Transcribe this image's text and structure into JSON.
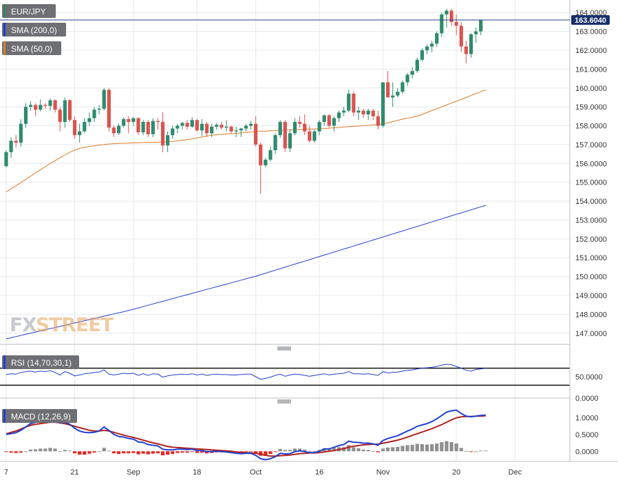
{
  "chart_data": {
    "type": "candlestick",
    "symbol": "EUR/JPY",
    "last_price": "163.6040",
    "indicators": {
      "sma200_label": "SMA (200,0)",
      "sma50_label": "SMA (50,0)",
      "rsi_label": "RSI (14,70,30,1)",
      "macd_label": "MACD (12,26,9)"
    },
    "price_axis": {
      "ticks": [
        "164.0000",
        "163.0000",
        "162.0000",
        "161.0000",
        "160.0000",
        "159.0000",
        "158.0000",
        "157.0000",
        "156.0000",
        "155.0000",
        "154.0000",
        "153.0000",
        "152.0000",
        "151.0000",
        "150.0000",
        "149.0000",
        "148.0000",
        "147.0000"
      ],
      "ylim": [
        146.7,
        164.3
      ]
    },
    "rsi_axis": {
      "ticks": [
        "50.0000",
        "0.0000"
      ],
      "ylim": [
        0,
        100
      ],
      "levels": [
        70,
        30
      ]
    },
    "macd_axis": {
      "ticks": [
        "1.0000",
        "0.5000",
        "0.0000"
      ],
      "ylim": [
        -0.3,
        1.25
      ]
    },
    "x_ticks": [
      "7",
      "21",
      "Sep",
      "18",
      "Oct",
      "16",
      "Nov",
      "20",
      "Dec"
    ],
    "x_tick_index": [
      0,
      14,
      26,
      39,
      51,
      64,
      77,
      92,
      104
    ],
    "candles_ohlc": [
      [
        155.85,
        156.7,
        155.8,
        156.6
      ],
      [
        156.6,
        157.4,
        156.3,
        157.2
      ],
      [
        157.2,
        157.5,
        156.85,
        157.1
      ],
      [
        157.1,
        158.35,
        156.9,
        158.1
      ],
      [
        158.1,
        159.2,
        157.9,
        159.0
      ],
      [
        159.0,
        159.3,
        158.8,
        159.1
      ],
      [
        159.1,
        159.2,
        158.5,
        158.85
      ],
      [
        158.85,
        159.4,
        158.75,
        159.1
      ],
      [
        159.1,
        159.2,
        158.9,
        159.05
      ],
      [
        159.05,
        159.45,
        158.8,
        159.35
      ],
      [
        159.35,
        159.4,
        158.7,
        158.85
      ],
      [
        158.85,
        159.0,
        157.7,
        158.2
      ],
      [
        158.2,
        159.5,
        157.9,
        159.35
      ],
      [
        159.35,
        159.4,
        158.2,
        158.3
      ],
      [
        158.3,
        158.5,
        157.3,
        157.5
      ],
      [
        157.5,
        158.1,
        157.1,
        157.7
      ],
      [
        157.7,
        158.4,
        157.6,
        158.2
      ],
      [
        158.2,
        158.7,
        158.0,
        158.4
      ],
      [
        158.4,
        159.0,
        158.2,
        158.85
      ],
      [
        158.85,
        159.1,
        158.6,
        158.9
      ],
      [
        158.9,
        160.0,
        158.8,
        159.9
      ],
      [
        159.9,
        160.0,
        157.7,
        157.9
      ],
      [
        157.9,
        158.0,
        157.4,
        157.6
      ],
      [
        157.6,
        158.1,
        157.5,
        158.0
      ],
      [
        158.0,
        158.45,
        157.9,
        158.35
      ],
      [
        158.35,
        158.5,
        157.6,
        158.2
      ],
      [
        158.2,
        158.45,
        158.0,
        158.4
      ],
      [
        158.4,
        158.45,
        157.5,
        157.65
      ],
      [
        157.65,
        158.3,
        157.5,
        158.2
      ],
      [
        158.2,
        158.3,
        157.4,
        157.55
      ],
      [
        157.55,
        158.4,
        157.4,
        158.25
      ],
      [
        158.25,
        158.4,
        157.8,
        158.2
      ],
      [
        158.2,
        158.7,
        156.6,
        156.95
      ],
      [
        156.95,
        157.7,
        156.6,
        157.5
      ],
      [
        157.5,
        158.0,
        157.3,
        157.85
      ],
      [
        157.85,
        158.1,
        157.6,
        158.0
      ],
      [
        158.0,
        158.2,
        157.8,
        158.15
      ],
      [
        158.15,
        158.3,
        157.8,
        157.95
      ],
      [
        157.95,
        158.45,
        157.9,
        158.3
      ],
      [
        158.3,
        158.35,
        157.7,
        157.75
      ],
      [
        157.75,
        158.35,
        157.45,
        158.1
      ],
      [
        158.1,
        158.2,
        157.4,
        157.6
      ],
      [
        157.6,
        158.1,
        157.4,
        157.95
      ],
      [
        157.95,
        158.15,
        157.8,
        158.05
      ],
      [
        158.05,
        158.2,
        157.8,
        157.9
      ],
      [
        157.9,
        158.3,
        157.7,
        157.95
      ],
      [
        157.95,
        158.0,
        157.6,
        157.7
      ],
      [
        157.7,
        157.95,
        157.4,
        157.75
      ],
      [
        157.75,
        157.9,
        157.4,
        157.85
      ],
      [
        157.85,
        158.1,
        157.7,
        158.0
      ],
      [
        158.0,
        158.25,
        157.8,
        158.1
      ],
      [
        158.1,
        158.5,
        156.9,
        157.0
      ],
      [
        157.0,
        157.1,
        154.4,
        155.9
      ],
      [
        155.9,
        156.3,
        155.8,
        156.2
      ],
      [
        156.2,
        156.9,
        156.1,
        156.7
      ],
      [
        156.7,
        157.6,
        156.5,
        157.5
      ],
      [
        157.5,
        158.3,
        157.35,
        158.2
      ],
      [
        158.2,
        158.3,
        156.6,
        156.8
      ],
      [
        156.8,
        157.8,
        156.6,
        157.6
      ],
      [
        157.6,
        158.4,
        157.5,
        158.2
      ],
      [
        158.2,
        158.5,
        157.9,
        158.1
      ],
      [
        158.1,
        158.6,
        157.5,
        157.7
      ],
      [
        157.7,
        158.0,
        157.1,
        157.2
      ],
      [
        157.2,
        157.8,
        157.1,
        157.7
      ],
      [
        157.7,
        158.3,
        157.5,
        158.2
      ],
      [
        158.2,
        158.6,
        158.0,
        158.55
      ],
      [
        158.55,
        158.6,
        157.9,
        158.0
      ],
      [
        158.0,
        158.5,
        157.7,
        158.4
      ],
      [
        158.4,
        158.8,
        158.2,
        158.7
      ],
      [
        158.7,
        159.0,
        158.5,
        158.8
      ],
      [
        158.8,
        159.9,
        158.7,
        159.7
      ],
      [
        159.7,
        159.8,
        158.5,
        158.7
      ],
      [
        158.7,
        159.0,
        158.3,
        158.8
      ],
      [
        158.8,
        158.9,
        158.4,
        158.6
      ],
      [
        158.6,
        158.9,
        158.3,
        158.8
      ],
      [
        158.8,
        158.9,
        158.3,
        158.5
      ],
      [
        158.5,
        158.8,
        157.8,
        158.0
      ],
      [
        158.0,
        160.3,
        157.9,
        160.3
      ],
      [
        160.3,
        160.9,
        159.8,
        159.5
      ],
      [
        159.5,
        160.3,
        159.0,
        159.6
      ],
      [
        159.6,
        160.0,
        159.5,
        159.8
      ],
      [
        159.8,
        160.4,
        159.7,
        160.3
      ],
      [
        160.3,
        160.8,
        160.1,
        160.7
      ],
      [
        160.7,
        161.1,
        160.5,
        160.9
      ],
      [
        160.9,
        161.6,
        160.8,
        161.5
      ],
      [
        161.5,
        162.1,
        161.4,
        162.0
      ],
      [
        162.0,
        162.3,
        161.8,
        162.2
      ],
      [
        162.2,
        162.5,
        161.9,
        162.35
      ],
      [
        162.35,
        163.0,
        162.2,
        162.9
      ],
      [
        162.9,
        164.0,
        162.7,
        163.9
      ],
      [
        163.9,
        164.2,
        163.2,
        164.1
      ],
      [
        164.1,
        164.2,
        163.3,
        163.5
      ],
      [
        163.5,
        163.9,
        162.8,
        163.3
      ],
      [
        163.3,
        163.5,
        161.9,
        162.2
      ],
      [
        162.2,
        162.5,
        161.3,
        161.8
      ],
      [
        161.8,
        162.9,
        161.6,
        162.85
      ],
      [
        162.85,
        163.2,
        162.4,
        163.0
      ],
      [
        163.0,
        163.6,
        162.8,
        163.6
      ]
    ],
    "sma50": [
      154.5,
      154.65,
      154.82,
      154.98,
      155.15,
      155.33,
      155.5,
      155.67,
      155.83,
      156.0,
      156.15,
      156.3,
      156.45,
      156.6,
      156.7,
      156.8,
      156.86,
      156.9,
      156.94,
      156.97,
      157.0,
      157.03,
      157.05,
      157.06,
      157.07,
      157.08,
      157.09,
      157.1,
      157.11,
      157.11,
      157.12,
      157.13,
      157.14,
      157.15,
      157.17,
      157.2,
      157.23,
      157.26,
      157.3,
      157.35,
      157.4,
      157.45,
      157.5,
      157.52,
      157.54,
      157.56,
      157.58,
      157.6,
      157.62,
      157.64,
      157.66,
      157.68,
      157.7,
      157.72,
      157.73,
      157.74,
      157.75,
      157.77,
      157.78,
      157.79,
      157.8,
      157.81,
      157.82,
      157.83,
      157.84,
      157.85,
      157.87,
      157.89,
      157.91,
      157.93,
      157.95,
      157.97,
      157.98,
      158.0,
      158.02,
      158.04,
      158.06,
      158.1,
      158.15,
      158.22,
      158.28,
      158.35,
      158.4,
      158.45,
      158.5,
      158.6,
      158.7,
      158.8,
      158.9,
      159.0,
      159.1,
      159.2,
      159.3,
      159.4,
      159.5,
      159.6,
      159.7,
      159.8,
      159.9
    ],
    "sma200": [
      146.7,
      146.76,
      146.82,
      146.88,
      146.94,
      147.0,
      147.06,
      147.12,
      147.18,
      147.24,
      147.3,
      147.36,
      147.42,
      147.48,
      147.54,
      147.6,
      147.66,
      147.72,
      147.78,
      147.84,
      147.9,
      147.96,
      148.02,
      148.08,
      148.14,
      148.2,
      148.27,
      148.34,
      148.41,
      148.48,
      148.55,
      148.62,
      148.69,
      148.76,
      148.83,
      148.9,
      148.97,
      149.04,
      149.11,
      149.18,
      149.25,
      149.32,
      149.39,
      149.46,
      149.53,
      149.6,
      149.67,
      149.74,
      149.81,
      149.88,
      149.95,
      150.02,
      150.1,
      150.18,
      150.26,
      150.34,
      150.42,
      150.5,
      150.58,
      150.66,
      150.74,
      150.82,
      150.9,
      150.98,
      151.06,
      151.14,
      151.22,
      151.3,
      151.38,
      151.46,
      151.54,
      151.62,
      151.7,
      151.78,
      151.86,
      151.94,
      152.02,
      152.1,
      152.18,
      152.26,
      152.34,
      152.42,
      152.5,
      152.58,
      152.66,
      152.74,
      152.82,
      152.9,
      152.98,
      153.06,
      153.14,
      153.22,
      153.3,
      153.38,
      153.46,
      153.54,
      153.62,
      153.7,
      153.78
    ],
    "rsi": [
      55,
      57,
      56,
      60,
      62,
      63,
      61,
      63,
      62,
      64,
      60,
      54,
      62,
      58,
      52,
      54,
      57,
      58,
      60,
      61,
      66,
      56,
      54,
      56,
      58,
      57,
      58,
      53,
      57,
      53,
      57,
      56,
      49,
      52,
      54,
      55,
      56,
      55,
      57,
      54,
      56,
      53,
      55,
      56,
      55,
      55,
      54,
      54,
      55,
      56,
      56,
      50,
      44,
      46,
      49,
      53,
      56,
      51,
      54,
      56,
      55,
      53,
      51,
      53,
      55,
      57,
      54,
      56,
      57,
      58,
      62,
      57,
      57,
      56,
      57,
      55,
      53,
      62,
      59,
      60,
      61,
      63,
      65,
      66,
      68,
      70,
      71,
      72,
      74,
      77,
      79,
      78,
      74,
      70,
      65,
      63,
      67,
      68,
      70
    ],
    "macd_line": [
      0.5,
      0.52,
      0.55,
      0.62,
      0.72,
      0.82,
      0.86,
      0.9,
      0.92,
      0.96,
      0.94,
      0.84,
      0.86,
      0.8,
      0.68,
      0.6,
      0.56,
      0.55,
      0.56,
      0.6,
      0.72,
      0.62,
      0.5,
      0.44,
      0.42,
      0.38,
      0.36,
      0.28,
      0.26,
      0.2,
      0.18,
      0.16,
      0.06,
      0.04,
      0.04,
      0.06,
      0.06,
      0.05,
      0.06,
      0.02,
      0.02,
      -0.01,
      -0.01,
      0.0,
      -0.01,
      -0.02,
      -0.04,
      -0.06,
      -0.07,
      -0.06,
      -0.06,
      -0.12,
      -0.22,
      -0.25,
      -0.22,
      -0.16,
      -0.06,
      -0.08,
      -0.07,
      -0.01,
      0.01,
      -0.01,
      -0.04,
      -0.04,
      0.0,
      0.07,
      0.07,
      0.12,
      0.17,
      0.2,
      0.3,
      0.27,
      0.26,
      0.24,
      0.24,
      0.22,
      0.18,
      0.32,
      0.38,
      0.42,
      0.46,
      0.53,
      0.6,
      0.66,
      0.74,
      0.78,
      0.82,
      0.88,
      0.96,
      1.06,
      1.16,
      1.2,
      1.22,
      1.12,
      1.04,
      1.02,
      1.04,
      1.06,
      1.07
    ],
    "macd_signal": [
      0.52,
      0.56,
      0.6,
      0.66,
      0.72,
      0.77,
      0.8,
      0.82,
      0.84,
      0.86,
      0.86,
      0.84,
      0.82,
      0.78,
      0.74,
      0.7,
      0.66,
      0.62,
      0.6,
      0.6,
      0.62,
      0.6,
      0.56,
      0.52,
      0.48,
      0.44,
      0.41,
      0.37,
      0.33,
      0.29,
      0.25,
      0.22,
      0.18,
      0.14,
      0.12,
      0.11,
      0.1,
      0.09,
      0.08,
      0.07,
      0.06,
      0.05,
      0.04,
      0.03,
      0.02,
      0.01,
      0.0,
      -0.02,
      -0.03,
      -0.04,
      -0.05,
      -0.06,
      -0.09,
      -0.12,
      -0.14,
      -0.14,
      -0.13,
      -0.12,
      -0.11,
      -0.09,
      -0.07,
      -0.06,
      -0.05,
      -0.05,
      -0.04,
      -0.02,
      0.0,
      0.02,
      0.05,
      0.08,
      0.12,
      0.15,
      0.17,
      0.19,
      0.2,
      0.21,
      0.21,
      0.24,
      0.27,
      0.3,
      0.33,
      0.37,
      0.42,
      0.47,
      0.52,
      0.57,
      0.62,
      0.67,
      0.73,
      0.79,
      0.86,
      0.93,
      0.99,
      1.02,
      1.03,
      1.03,
      1.04,
      1.04,
      1.05
    ]
  }
}
